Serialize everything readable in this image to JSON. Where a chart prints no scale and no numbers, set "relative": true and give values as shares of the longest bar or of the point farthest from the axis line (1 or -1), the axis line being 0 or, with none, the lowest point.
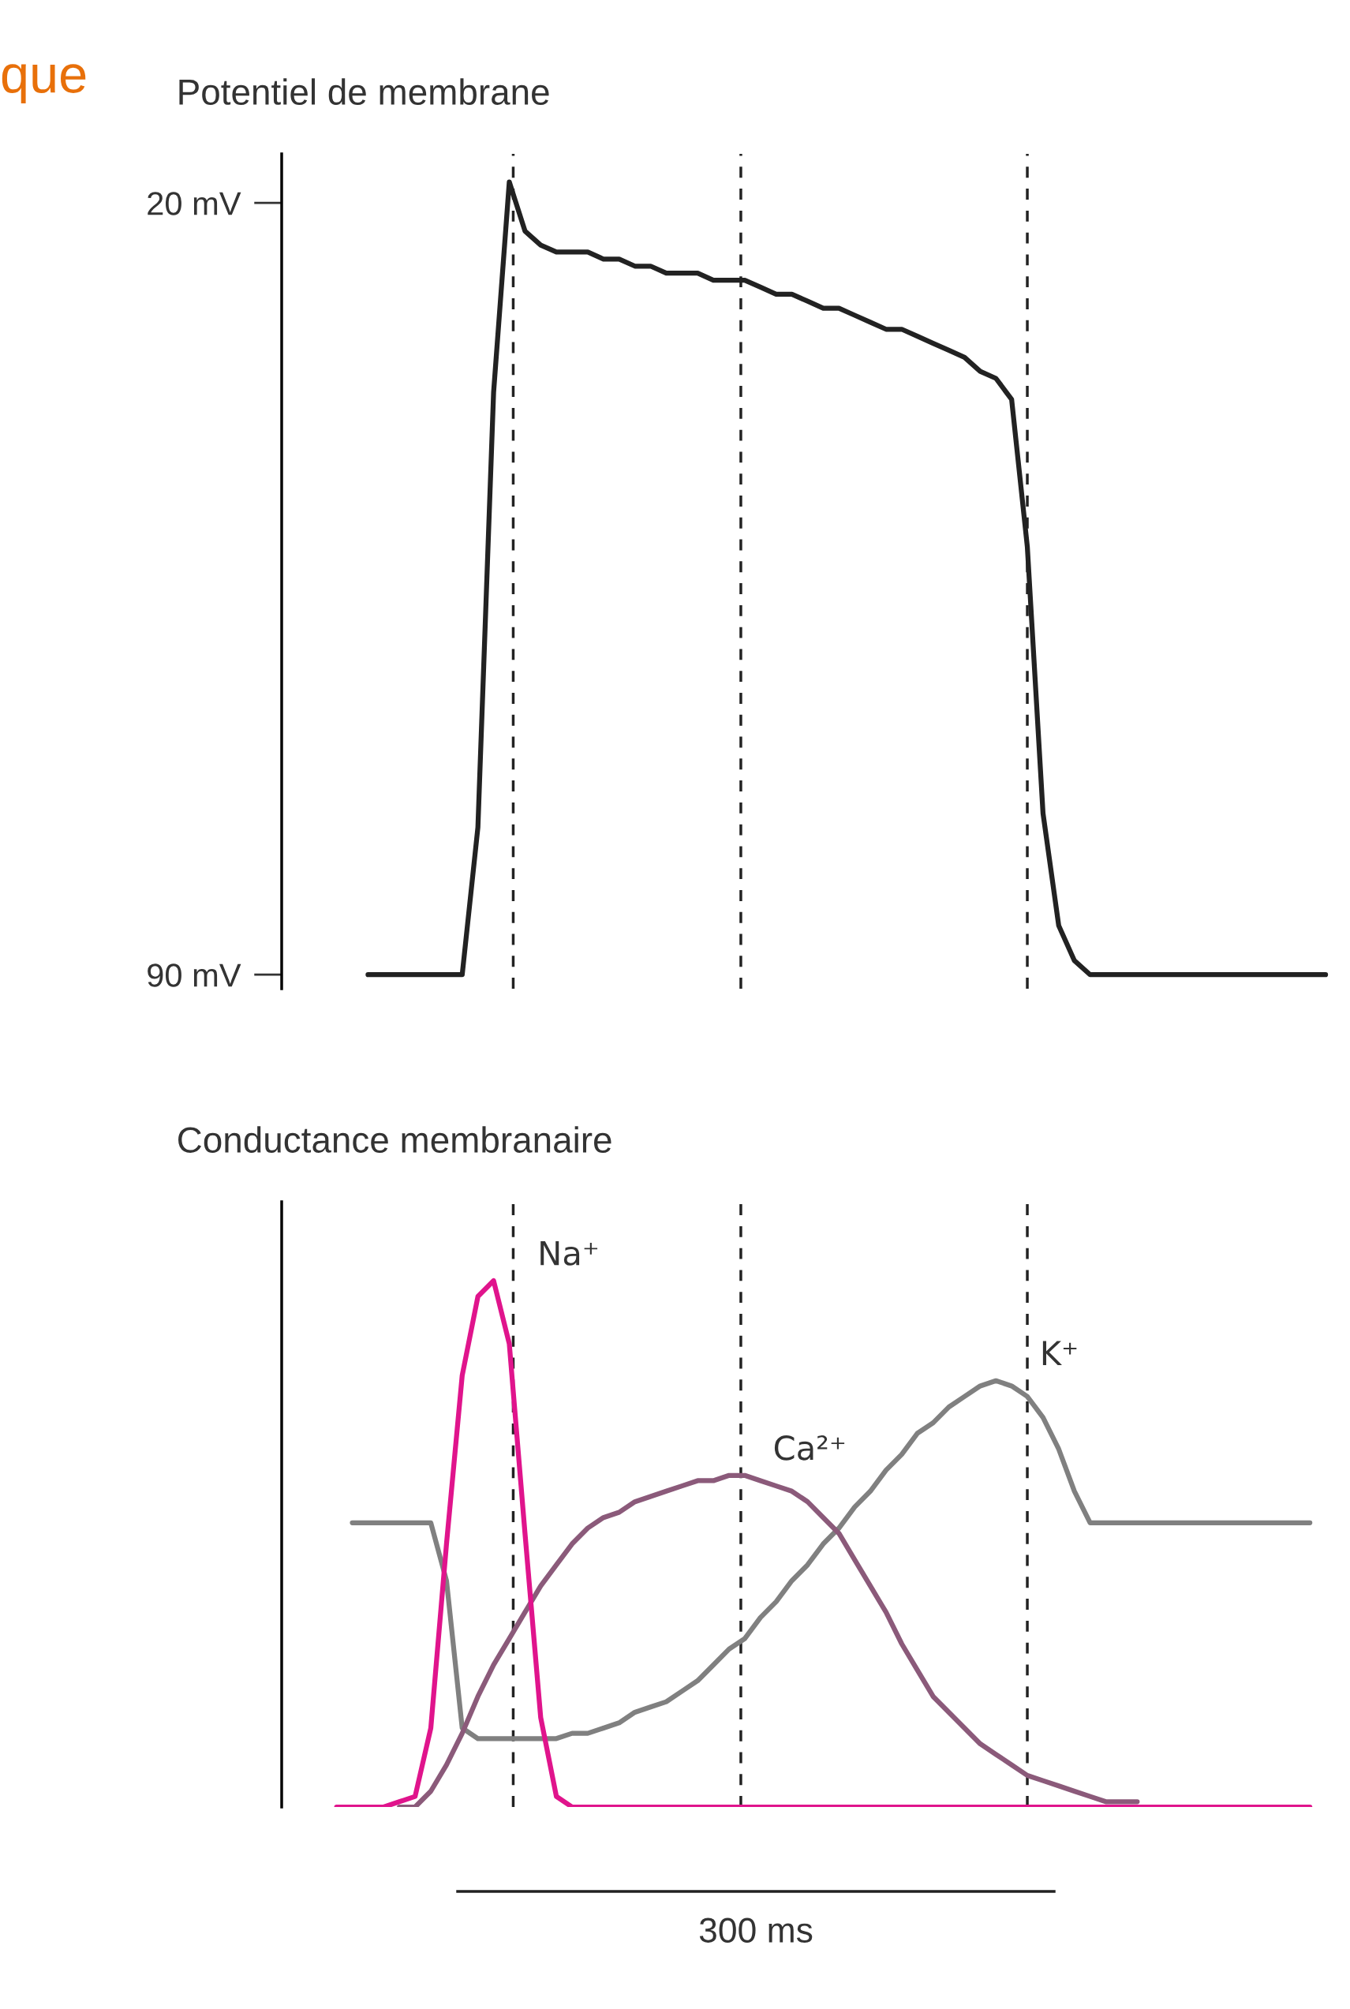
{
  "chart_data": [
    {
      "type": "line",
      "title": "Potentiel de membrane",
      "annotations": [
        "que",
        "300 ms"
      ],
      "tick_labels": "y",
      "legend": false,
      "grid": false,
      "marker": "none",
      "line_style": "solid",
      "categories": [
        null,
        null,
        null,
        null,
        null,
        null,
        null,
        null,
        null,
        null,
        null,
        null,
        null,
        null,
        null,
        null,
        null,
        null,
        null,
        null,
        null,
        null,
        null,
        null,
        null,
        null,
        null,
        null,
        null,
        null,
        null,
        null,
        null,
        null,
        null,
        null,
        null,
        null,
        null,
        null,
        null,
        null,
        null,
        null,
        null,
        null,
        null,
        null,
        null,
        null,
        null,
        null,
        null,
        null,
        null,
        null,
        null,
        null,
        null,
        null,
        null,
        null,
        null,
        null,
        null,
        null,
        null
      ],
      "ylim": [
        -92,
        27
      ],
      "yticks": [
        {
          "value": -90,
          "label": "90 mV"
        },
        {
          "value": 20,
          "label": "20 mV"
        }
      ],
      "series": [
        {
          "color": "#222222",
          "values": [
            null,
            null,
            null,
            null,
            null,
            -90,
            -90,
            -90,
            -90,
            -90,
            -90,
            -90,
            -69,
            -7,
            23,
            16,
            14,
            13,
            13,
            13,
            12,
            12,
            11,
            11,
            10,
            10,
            10,
            9,
            9,
            9,
            8,
            7,
            7,
            6,
            5,
            5,
            4,
            3,
            2,
            2,
            1,
            0,
            -1,
            -2,
            -4,
            -5,
            -8,
            -29,
            -67,
            -83,
            -88,
            -90,
            -90,
            -90,
            -90,
            -90,
            -90,
            -90,
            -90,
            -90,
            -90,
            -90,
            -90,
            -90,
            -90,
            -90,
            -90
          ]
        }
      ]
    },
    {
      "type": "line",
      "title": "Conductance membranaire",
      "relative": true,
      "tick_labels": false,
      "legend": false,
      "grid": false,
      "marker": "none",
      "line_style": "solid",
      "categories": [
        null,
        null,
        null,
        null,
        null,
        null,
        null,
        null,
        null,
        null,
        null,
        null,
        null,
        null,
        null,
        null,
        null,
        null,
        null,
        null,
        null,
        null,
        null,
        null,
        null,
        null,
        null,
        null,
        null,
        null,
        null,
        null,
        null,
        null,
        null,
        null,
        null,
        null,
        null,
        null,
        null,
        null,
        null,
        null,
        null,
        null,
        null,
        null,
        null,
        null,
        null,
        null,
        null,
        null,
        null,
        null,
        null,
        null,
        null,
        null,
        null,
        null,
        null,
        null,
        null,
        null,
        null
      ],
      "series": [
        {
          "name": "K⁺",
          "color": "#808080",
          "values": [
            null,
            null,
            null,
            null,
            0.54,
            0.54,
            0.54,
            0.54,
            0.54,
            0.54,
            0.43,
            0.15,
            0.13,
            0.13,
            0.13,
            0.13,
            0.13,
            0.13,
            0.14,
            0.14,
            0.15,
            0.16,
            0.18,
            0.19,
            0.2,
            0.22,
            0.24,
            0.27,
            0.3,
            0.32,
            0.36,
            0.39,
            0.43,
            0.46,
            0.5,
            0.53,
            0.57,
            0.6,
            0.64,
            0.67,
            0.71,
            0.73,
            0.76,
            0.78,
            0.8,
            0.81,
            0.8,
            0.78,
            0.74,
            0.68,
            0.6,
            0.54,
            0.54,
            0.54,
            0.54,
            0.54,
            0.54,
            0.54,
            0.54,
            0.54,
            0.54,
            0.54,
            0.54,
            0.54,
            0.54,
            0.54,
            null
          ]
        },
        {
          "name": "Ca²⁺",
          "color": "#8b5a7a",
          "values": [
            null,
            null,
            null,
            null,
            null,
            null,
            null,
            0,
            0,
            0.03,
            0.08,
            0.14,
            0.21,
            0.27,
            0.32,
            0.37,
            0.42,
            0.46,
            0.5,
            0.53,
            0.55,
            0.56,
            0.58,
            0.59,
            0.6,
            0.61,
            0.62,
            0.62,
            0.63,
            0.63,
            0.62,
            0.61,
            0.6,
            0.58,
            0.55,
            0.52,
            0.47,
            0.42,
            0.37,
            0.31,
            0.26,
            0.21,
            0.18,
            0.15,
            0.12,
            0.1,
            0.08,
            0.06,
            0.05,
            0.04,
            0.03,
            0.02,
            0.01,
            0.01,
            0.01,
            null,
            null,
            null,
            null,
            null,
            null,
            null,
            null,
            null,
            null,
            null,
            null
          ]
        },
        {
          "name": "Na⁺",
          "color": "#e0148c",
          "values": [
            null,
            null,
            null,
            0,
            0,
            0,
            0,
            0.01,
            0.02,
            0.15,
            0.5,
            0.82,
            0.97,
            1,
            0.88,
            0.52,
            0.17,
            0.02,
            0,
            0,
            0,
            0,
            0,
            0,
            0,
            0,
            0,
            0,
            0,
            0,
            0,
            0,
            0,
            0,
            0,
            0,
            0,
            0,
            0,
            0,
            0,
            0,
            0,
            0,
            0,
            0,
            0,
            0,
            0,
            0,
            0,
            0,
            0,
            0,
            0,
            0,
            0,
            0,
            0,
            0,
            0,
            0,
            0,
            0,
            0,
            0,
            null
          ]
        }
      ]
    }
  ]
}
